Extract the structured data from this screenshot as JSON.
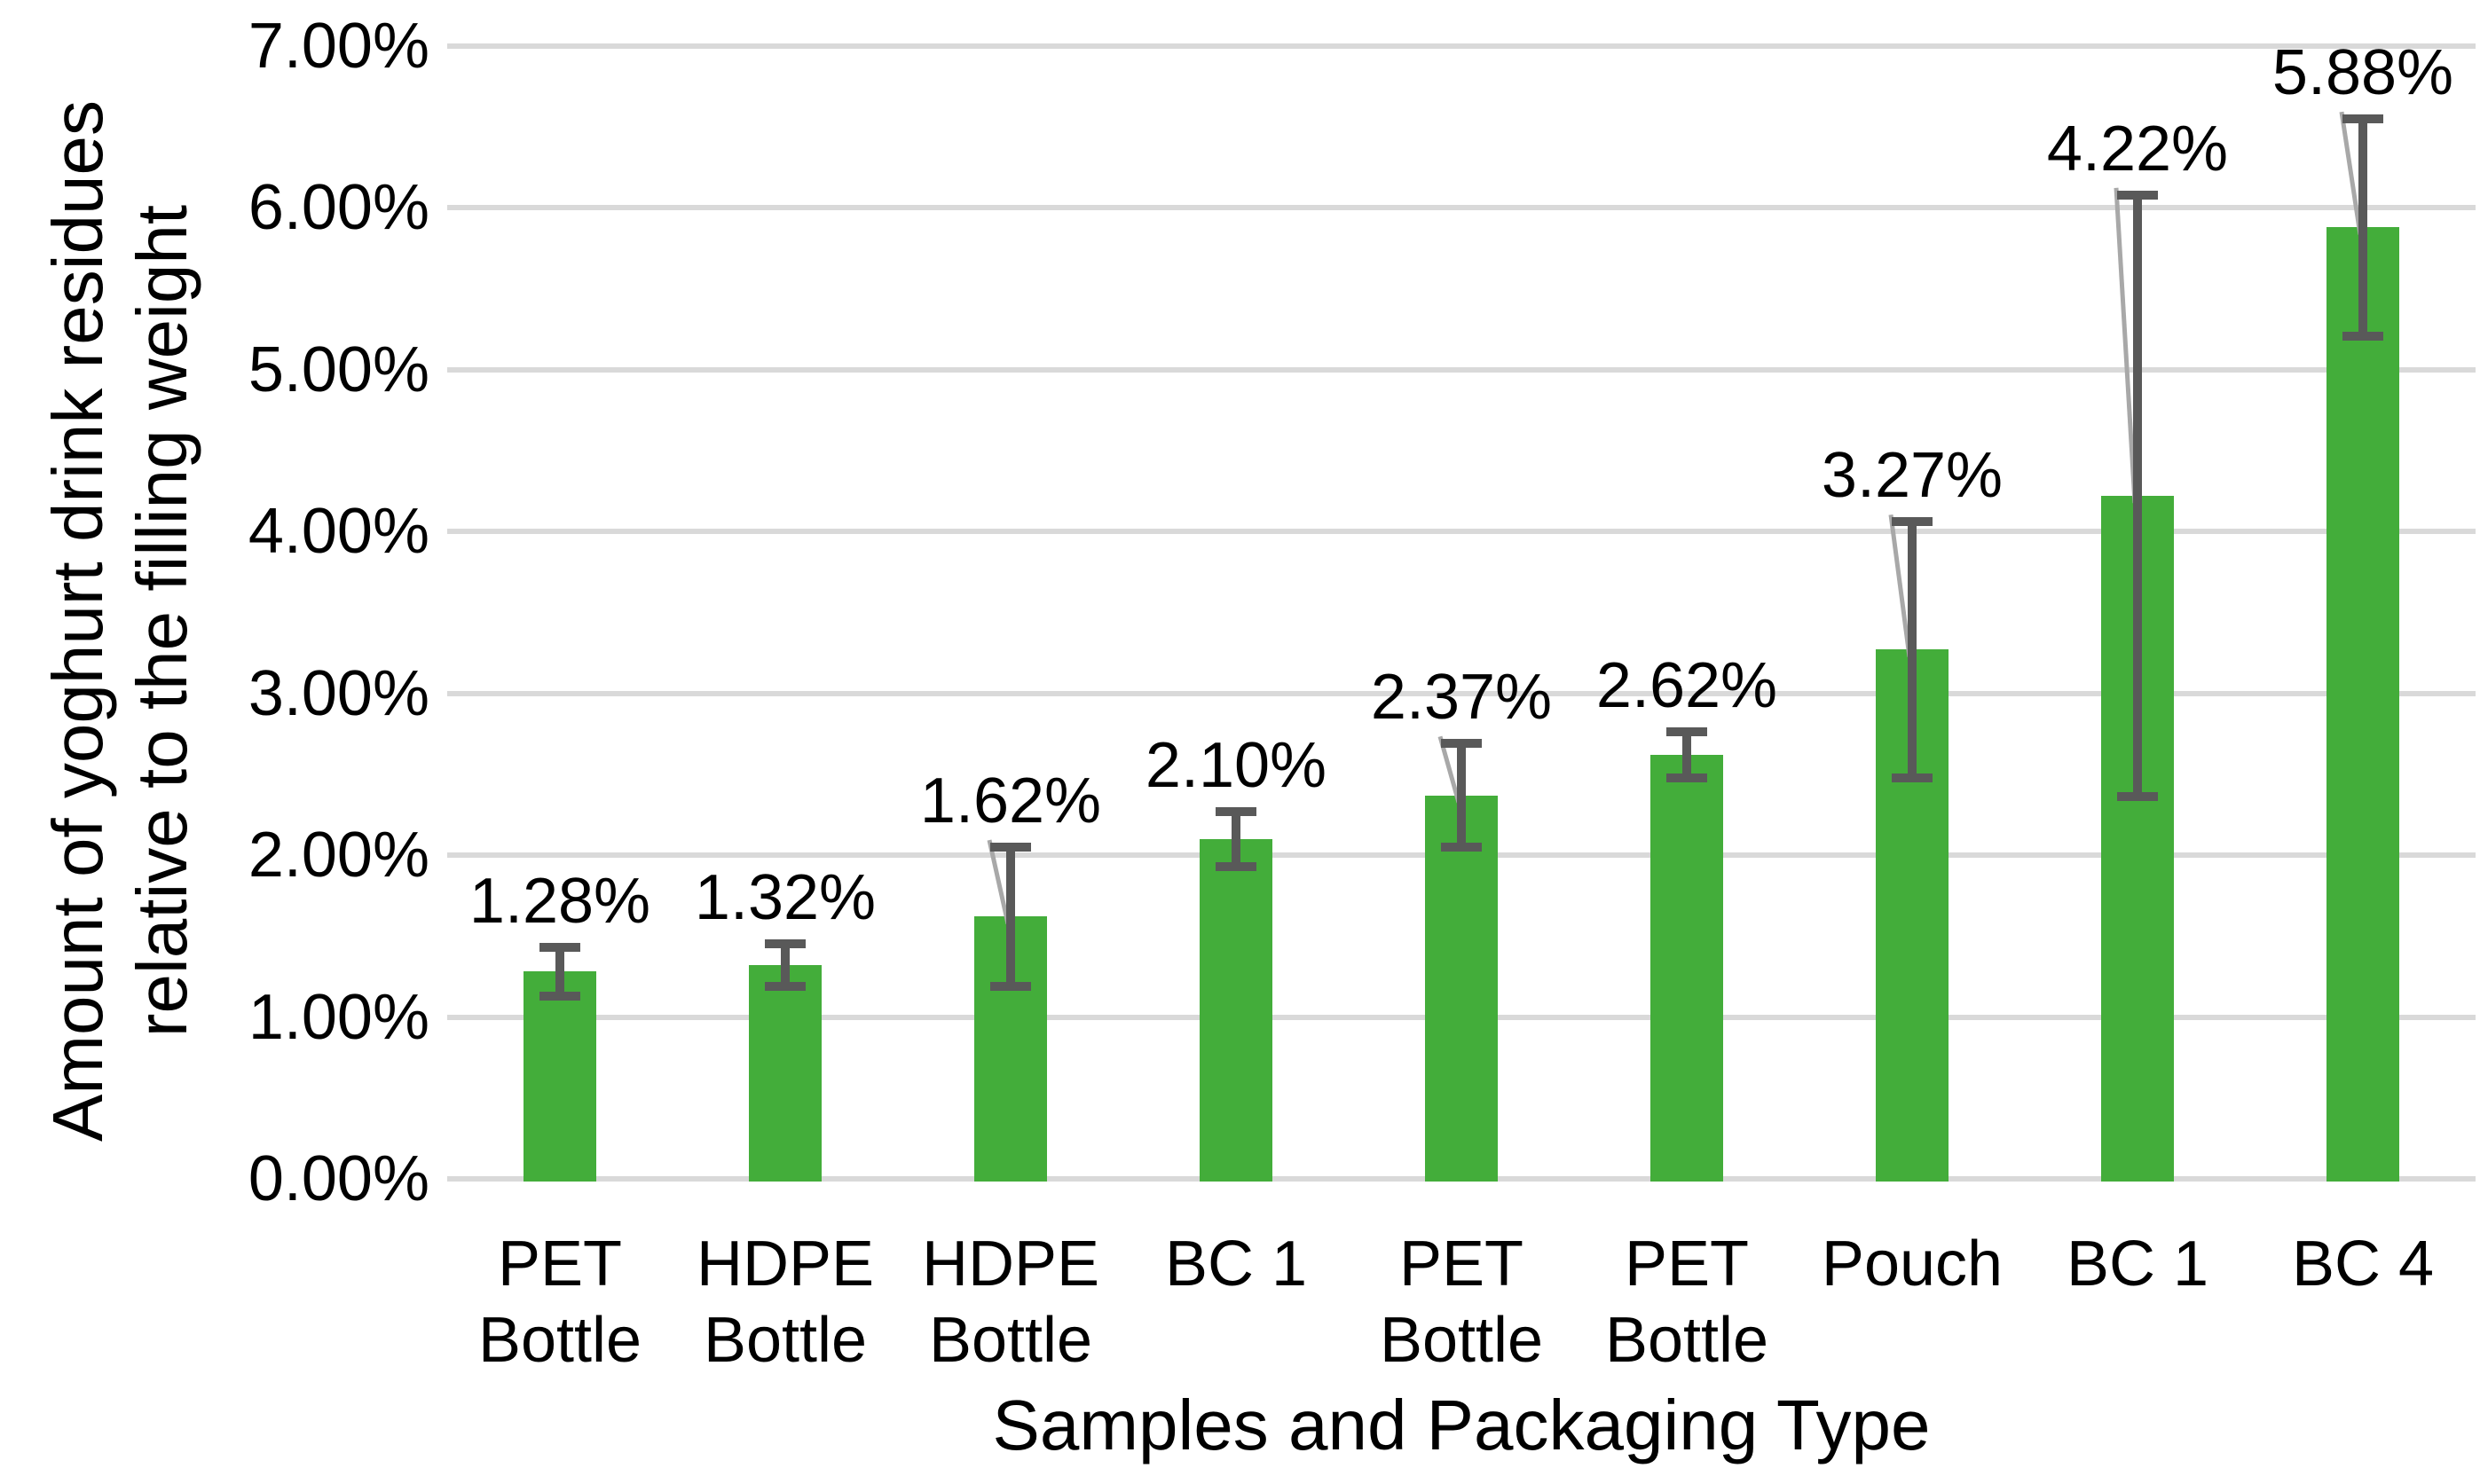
{
  "chart_data": {
    "type": "bar",
    "title": "",
    "xlabel": "Samples and Packaging Type",
    "ylabel": "Amount of yoghurt drink residues relative to the filling weight",
    "ylabel_lines": [
      "Amount of yoghurt drink residues",
      "relative to the filling weight"
    ],
    "categories": [
      "PET Bottle",
      "HDPE Bottle",
      "HDPE Bottle",
      "BC 1",
      "PET Bottle",
      "PET Bottle",
      "Pouch",
      "BC 1",
      "BC 4"
    ],
    "category_lines": [
      [
        "PET",
        "Bottle"
      ],
      [
        "HDPE",
        "Bottle"
      ],
      [
        "HDPE",
        "Bottle"
      ],
      [
        "BC 1"
      ],
      [
        "PET",
        "Bottle"
      ],
      [
        "PET",
        "Bottle"
      ],
      [
        "Pouch"
      ],
      [
        "BC 1"
      ],
      [
        "BC 4"
      ]
    ],
    "values": [
      1.28,
      1.32,
      1.62,
      2.1,
      2.37,
      2.62,
      3.27,
      4.22,
      5.88
    ],
    "data_labels": [
      "1.28%",
      "1.32%",
      "1.62%",
      "2.10%",
      "2.37%",
      "2.62%",
      "3.27%",
      "4.22%",
      "5.88%"
    ],
    "error_bars": [
      0.15,
      0.13,
      0.43,
      0.17,
      0.32,
      0.14,
      0.79,
      1.86,
      0.67
    ],
    "y_ticks": [
      "7.00%",
      "6.00%",
      "5.00%",
      "4.00%",
      "3.00%",
      "2.00%",
      "1.00%",
      "0.00%"
    ],
    "ylim": [
      0,
      7
    ],
    "grid": true,
    "legend": false,
    "colors": {
      "bar": "#43ad3a",
      "error_bar": "#595959",
      "gridline": "#d9d9d9",
      "leader_line": "#a8a8a8",
      "text": "#000000",
      "background": "#ffffff"
    }
  }
}
